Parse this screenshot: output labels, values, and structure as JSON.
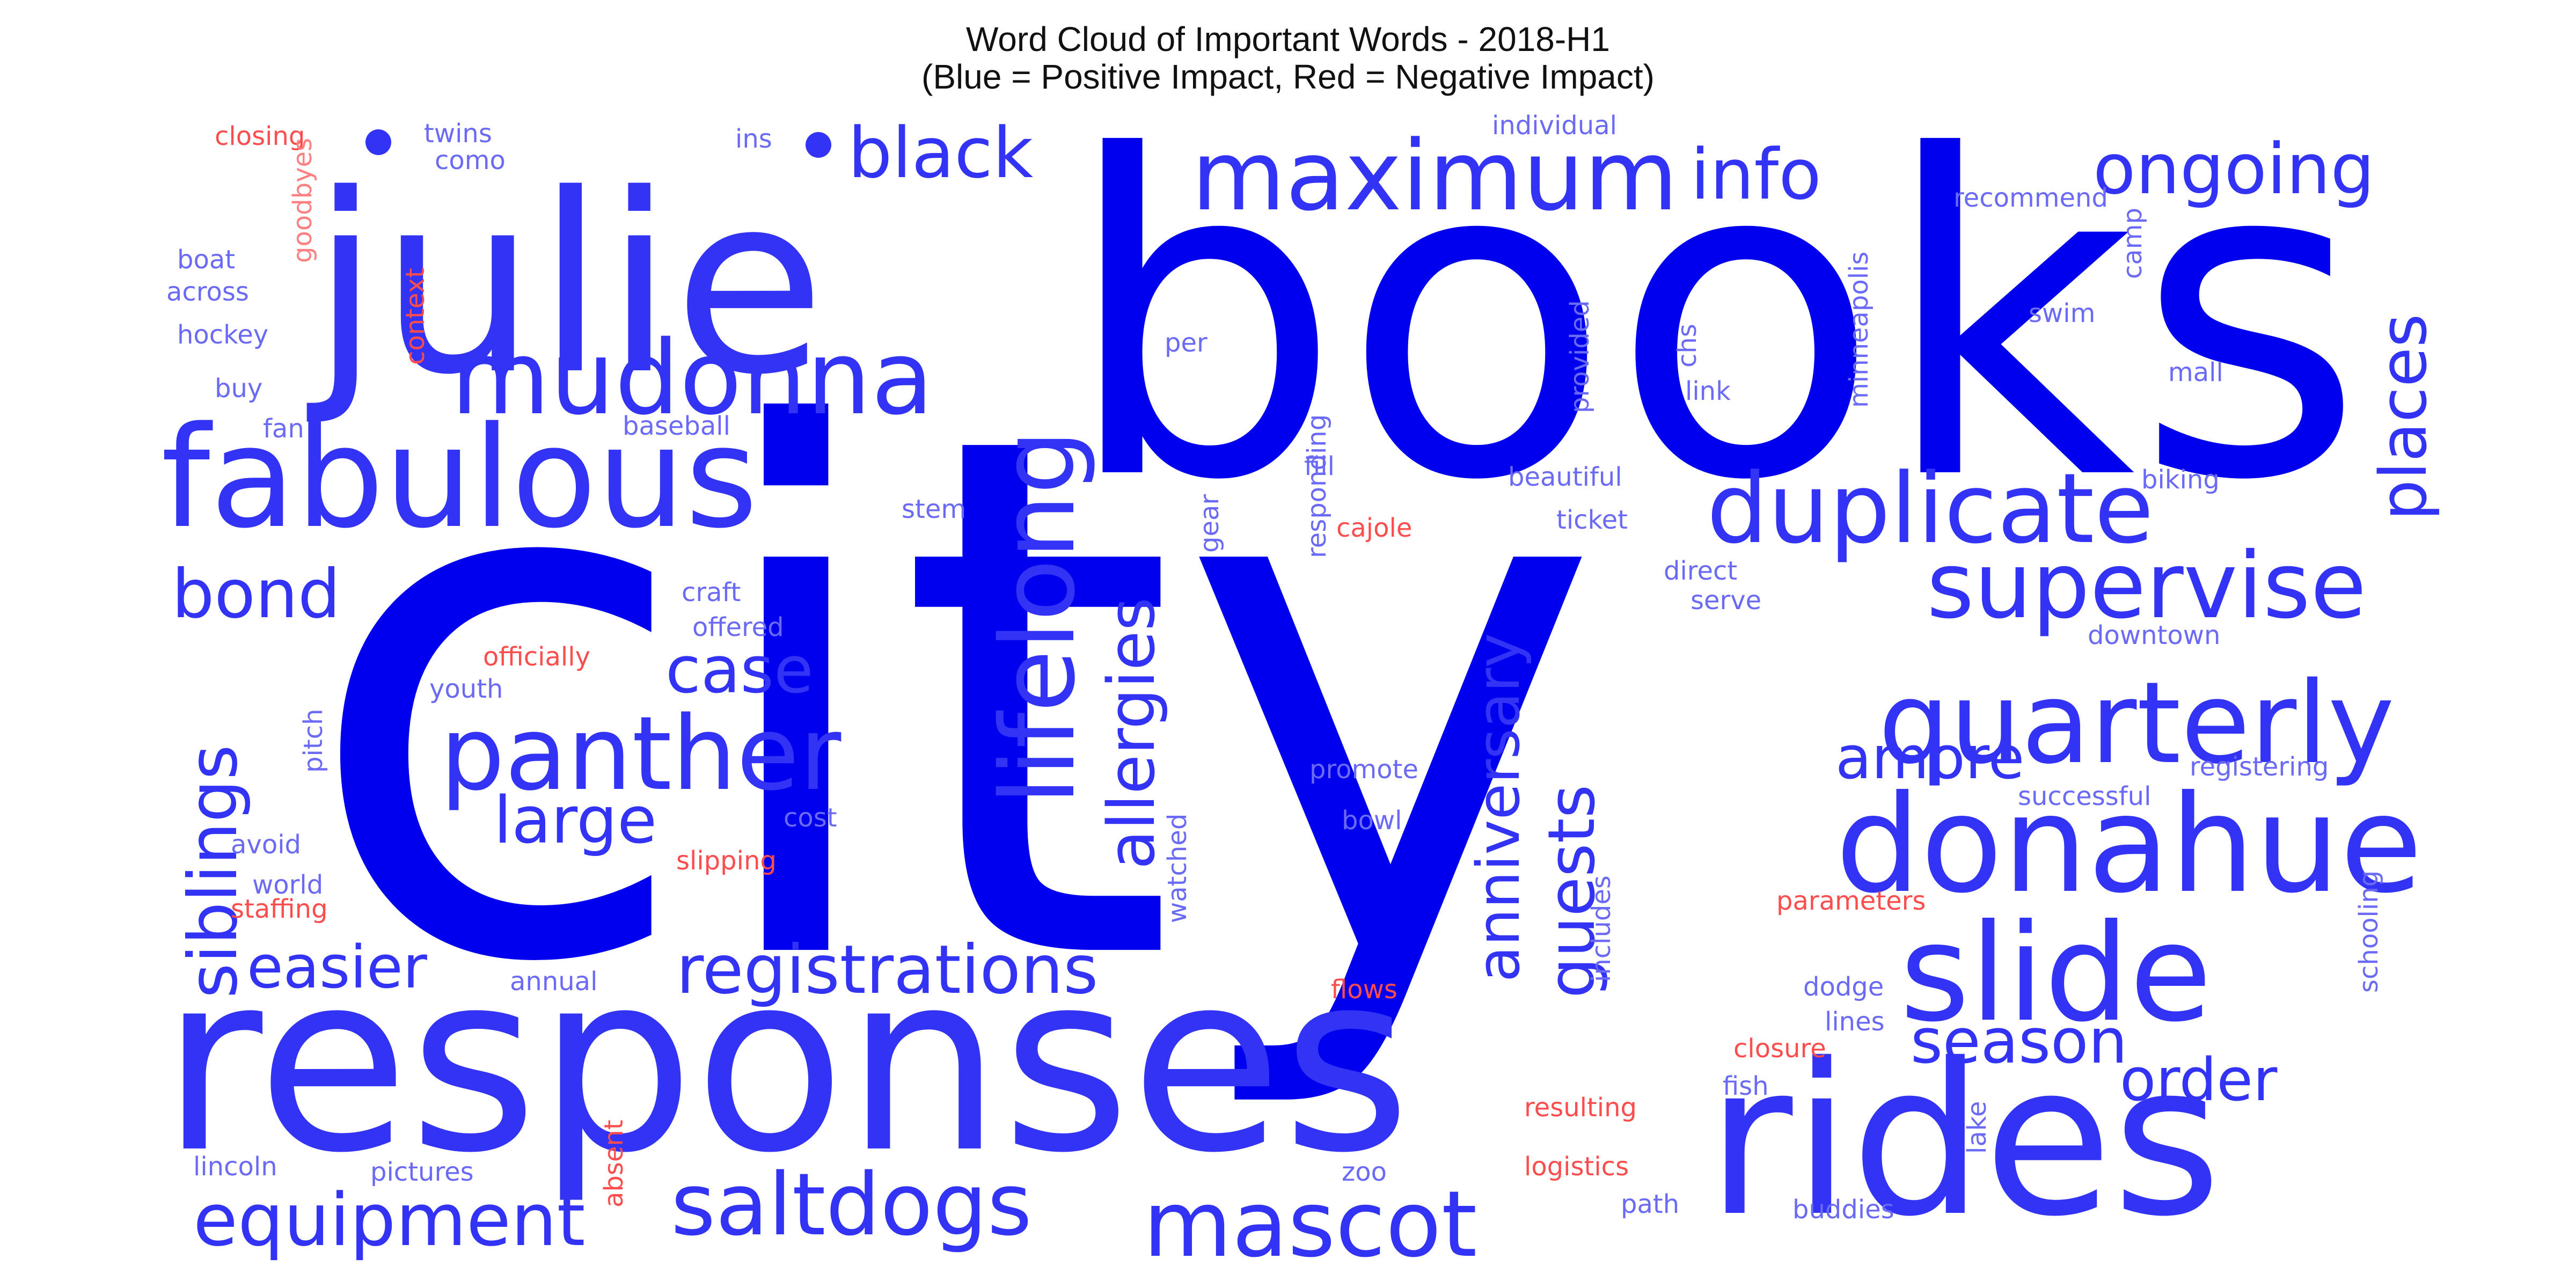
{
  "chart_data": {
    "type": "wordcloud",
    "title": "Word Cloud of Important Words - 2018-H1",
    "subtitle": "(Blue = Positive Impact, Red = Negative Impact)",
    "colors": {
      "positive_strong": "#0000ee",
      "positive": "#3333f5",
      "positive_light": "#6a6af7",
      "negative": "#ff4d4d",
      "negative_light": "#ff8080"
    },
    "words": [
      {
        "text": "city",
        "impact": "positive_strong"
      },
      {
        "text": "books",
        "impact": "positive_strong"
      },
      {
        "text": "julie",
        "impact": "positive"
      },
      {
        "text": "responses",
        "impact": "positive"
      },
      {
        "text": "rides",
        "impact": "positive"
      },
      {
        "text": "fabulous",
        "impact": "positive"
      },
      {
        "text": "donahue",
        "impact": "positive"
      },
      {
        "text": "slide",
        "impact": "positive"
      },
      {
        "text": "mudonna",
        "impact": "positive"
      },
      {
        "text": "maximum",
        "impact": "positive"
      },
      {
        "text": "duplicate",
        "impact": "positive"
      },
      {
        "text": "supervise",
        "impact": "positive"
      },
      {
        "text": "quarterly",
        "impact": "positive"
      },
      {
        "text": "panther",
        "impact": "positive"
      },
      {
        "text": "lifelong",
        "impact": "positive"
      },
      {
        "text": "mascot",
        "impact": "positive"
      },
      {
        "text": "saltdogs",
        "impact": "positive"
      },
      {
        "text": "registrations",
        "impact": "positive"
      },
      {
        "text": "equipment",
        "impact": "positive"
      },
      {
        "text": "ongoing",
        "impact": "positive"
      },
      {
        "text": "black",
        "impact": "positive"
      },
      {
        "text": "info",
        "impact": "positive"
      },
      {
        "text": "bond",
        "impact": "positive"
      },
      {
        "text": "case",
        "impact": "positive"
      },
      {
        "text": "large",
        "impact": "positive"
      },
      {
        "text": "easier",
        "impact": "positive"
      },
      {
        "text": "siblings",
        "impact": "positive"
      },
      {
        "text": "allergies",
        "impact": "positive"
      },
      {
        "text": "anniversary",
        "impact": "positive"
      },
      {
        "text": "guests",
        "impact": "positive"
      },
      {
        "text": "places",
        "impact": "positive"
      },
      {
        "text": "amore",
        "impact": "positive"
      },
      {
        "text": "season",
        "impact": "positive"
      },
      {
        "text": "order",
        "impact": "positive"
      },
      {
        "text": "closing",
        "impact": "negative"
      },
      {
        "text": "twins",
        "impact": "positive_light"
      },
      {
        "text": "como",
        "impact": "positive_light"
      },
      {
        "text": "ins",
        "impact": "positive_light"
      },
      {
        "text": "individual",
        "impact": "positive_light"
      },
      {
        "text": "recommend",
        "impact": "positive_light"
      },
      {
        "text": "goodbyes",
        "impact": "negative_light"
      },
      {
        "text": "context",
        "impact": "negative"
      },
      {
        "text": "boat",
        "impact": "positive_light"
      },
      {
        "text": "across",
        "impact": "positive_light"
      },
      {
        "text": "hockey",
        "impact": "positive_light"
      },
      {
        "text": "buy",
        "impact": "positive_light"
      },
      {
        "text": "fan",
        "impact": "positive_light"
      },
      {
        "text": "baseball",
        "impact": "positive_light"
      },
      {
        "text": "per",
        "impact": "positive_light"
      },
      {
        "text": "responding",
        "impact": "positive_light"
      },
      {
        "text": "provided",
        "impact": "positive_light"
      },
      {
        "text": "chs",
        "impact": "positive_light"
      },
      {
        "text": "link",
        "impact": "positive_light"
      },
      {
        "text": "minneapolis",
        "impact": "positive_light"
      },
      {
        "text": "swim",
        "impact": "positive_light"
      },
      {
        "text": "camp",
        "impact": "positive_light"
      },
      {
        "text": "mall",
        "impact": "positive_light"
      },
      {
        "text": "biking",
        "impact": "positive_light"
      },
      {
        "text": "fill",
        "impact": "positive_light"
      },
      {
        "text": "beautiful",
        "impact": "positive_light"
      },
      {
        "text": "stem",
        "impact": "positive_light"
      },
      {
        "text": "gear",
        "impact": "positive_light"
      },
      {
        "text": "cajole",
        "impact": "negative"
      },
      {
        "text": "ticket",
        "impact": "positive_light"
      },
      {
        "text": "direct",
        "impact": "positive_light"
      },
      {
        "text": "serve",
        "impact": "positive_light"
      },
      {
        "text": "craft",
        "impact": "positive_light"
      },
      {
        "text": "offered",
        "impact": "positive_light"
      },
      {
        "text": "officially",
        "impact": "negative"
      },
      {
        "text": "youth",
        "impact": "positive_light"
      },
      {
        "text": "downtown",
        "impact": "positive_light"
      },
      {
        "text": "pitch",
        "impact": "positive_light"
      },
      {
        "text": "promote",
        "impact": "positive_light"
      },
      {
        "text": "registering",
        "impact": "positive_light"
      },
      {
        "text": "successful",
        "impact": "positive_light"
      },
      {
        "text": "avoid",
        "impact": "positive_light"
      },
      {
        "text": "cost",
        "impact": "positive_light"
      },
      {
        "text": "bowl",
        "impact": "positive_light"
      },
      {
        "text": "world",
        "impact": "positive_light"
      },
      {
        "text": "slipping",
        "impact": "negative"
      },
      {
        "text": "watched",
        "impact": "positive_light"
      },
      {
        "text": "staffing",
        "impact": "negative"
      },
      {
        "text": "includes",
        "impact": "positive_light"
      },
      {
        "text": "parameters",
        "impact": "negative"
      },
      {
        "text": "annual",
        "impact": "positive_light"
      },
      {
        "text": "flows",
        "impact": "negative"
      },
      {
        "text": "dodge",
        "impact": "positive_light"
      },
      {
        "text": "schooling",
        "impact": "positive_light"
      },
      {
        "text": "lines",
        "impact": "positive_light"
      },
      {
        "text": "closure",
        "impact": "negative"
      },
      {
        "text": "fish",
        "impact": "positive_light"
      },
      {
        "text": "absent",
        "impact": "negative"
      },
      {
        "text": "resulting",
        "impact": "negative"
      },
      {
        "text": "lake",
        "impact": "positive_light"
      },
      {
        "text": "lincoln",
        "impact": "positive_light"
      },
      {
        "text": "pictures",
        "impact": "positive_light"
      },
      {
        "text": "zoo",
        "impact": "positive_light"
      },
      {
        "text": "logistics",
        "impact": "negative"
      },
      {
        "text": "path",
        "impact": "positive_light"
      },
      {
        "text": "buddies",
        "impact": "positive_light"
      }
    ]
  }
}
